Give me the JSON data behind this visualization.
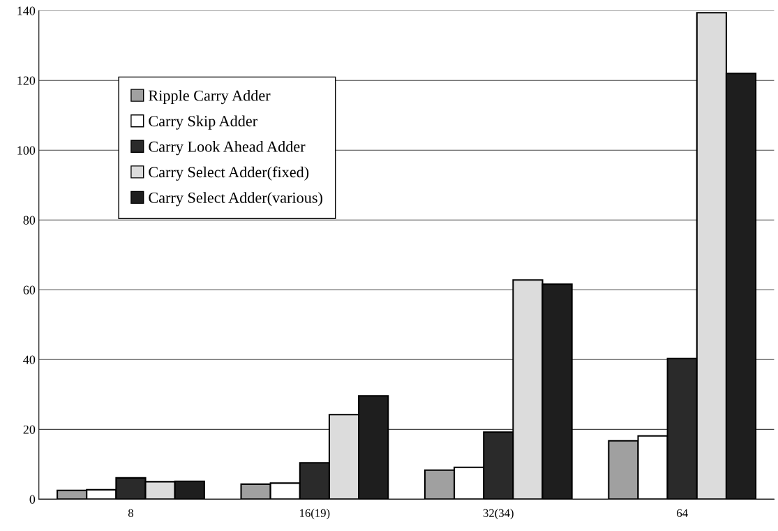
{
  "chart_data": {
    "type": "bar",
    "categories": [
      "8",
      "16(19)",
      "32(34)",
      "64"
    ],
    "series": [
      {
        "name": "Ripple Carry Adder",
        "color": "#a0a0a0",
        "values": [
          2.5,
          4.3,
          8.3,
          16.7
        ]
      },
      {
        "name": "Carry Skip Adder",
        "color": "#ffffff",
        "values": [
          2.7,
          4.6,
          9.1,
          18.1
        ]
      },
      {
        "name": "Carry Look Ahead Adder",
        "color": "#2a2a2a",
        "values": [
          6.1,
          10.4,
          19.2,
          40.3
        ]
      },
      {
        "name": "Carry Select Adder(fixed)",
        "color": "#dcdcdc",
        "values": [
          5.0,
          24.2,
          62.8,
          139.4
        ]
      },
      {
        "name": "Carry Select Adder(various)",
        "color": "#1e1e1e",
        "values": [
          5.1,
          29.6,
          61.6,
          122.0
        ]
      }
    ],
    "ylim": [
      0,
      140
    ],
    "yticks": [
      0,
      20,
      40,
      60,
      80,
      100,
      120,
      140
    ],
    "grid": "y",
    "legend": "top left"
  }
}
